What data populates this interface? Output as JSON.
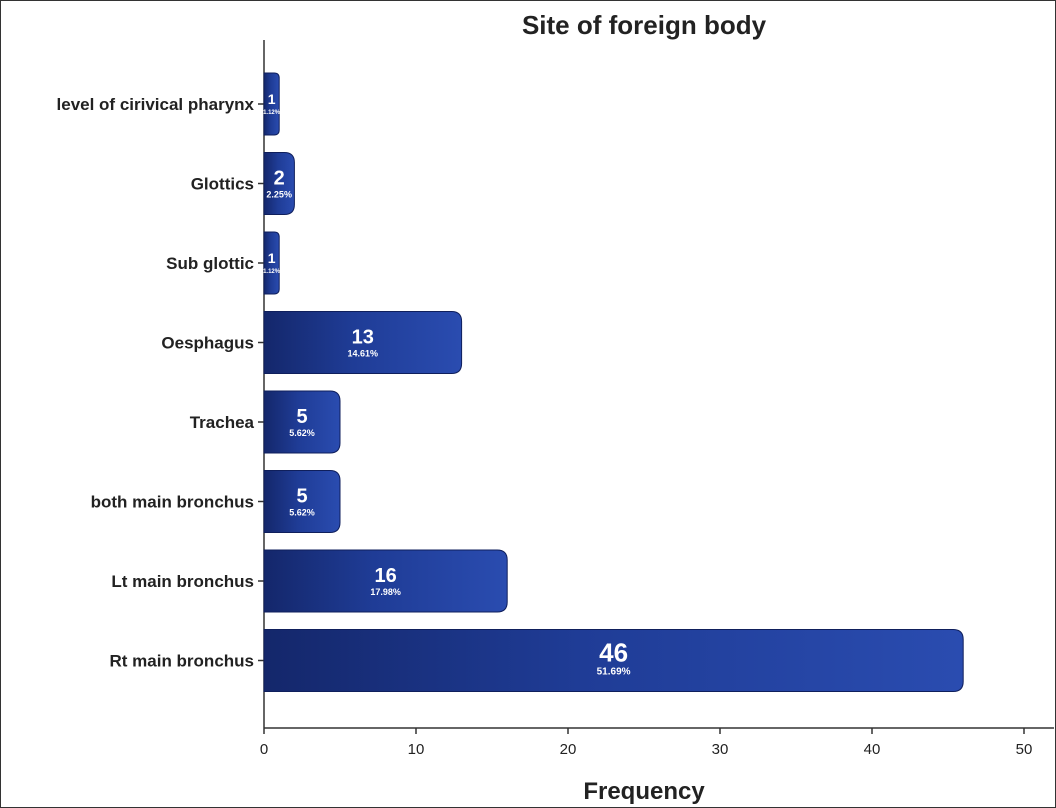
{
  "chart_data": {
    "type": "bar",
    "orientation": "horizontal",
    "title": "Site of foreign body",
    "xlabel": "Frequency",
    "ylabel": "",
    "categories": [
      "level of cirivical pharynx",
      "Glottics",
      "Sub glottic",
      "Oesphagus",
      "Trachea",
      "both main bronchus",
      "Lt main bronchus",
      "Rt main bronchus"
    ],
    "values": [
      1,
      2,
      1,
      13,
      5,
      5,
      16,
      46
    ],
    "value_labels": [
      "1",
      "2",
      "1",
      "13",
      "5",
      "5",
      "16",
      "46"
    ],
    "percent_labels": [
      "1.12%",
      "2.25%",
      "1.12%",
      "14.61%",
      "5.62%",
      "5.62%",
      "17.98%",
      "51.69%"
    ],
    "xlim": [
      0,
      50
    ],
    "xticks": [
      0,
      10,
      20,
      30,
      40,
      50
    ],
    "grid": false,
    "colors": {
      "bar": "#1f3c96",
      "bar_dark": "#14276b"
    }
  }
}
